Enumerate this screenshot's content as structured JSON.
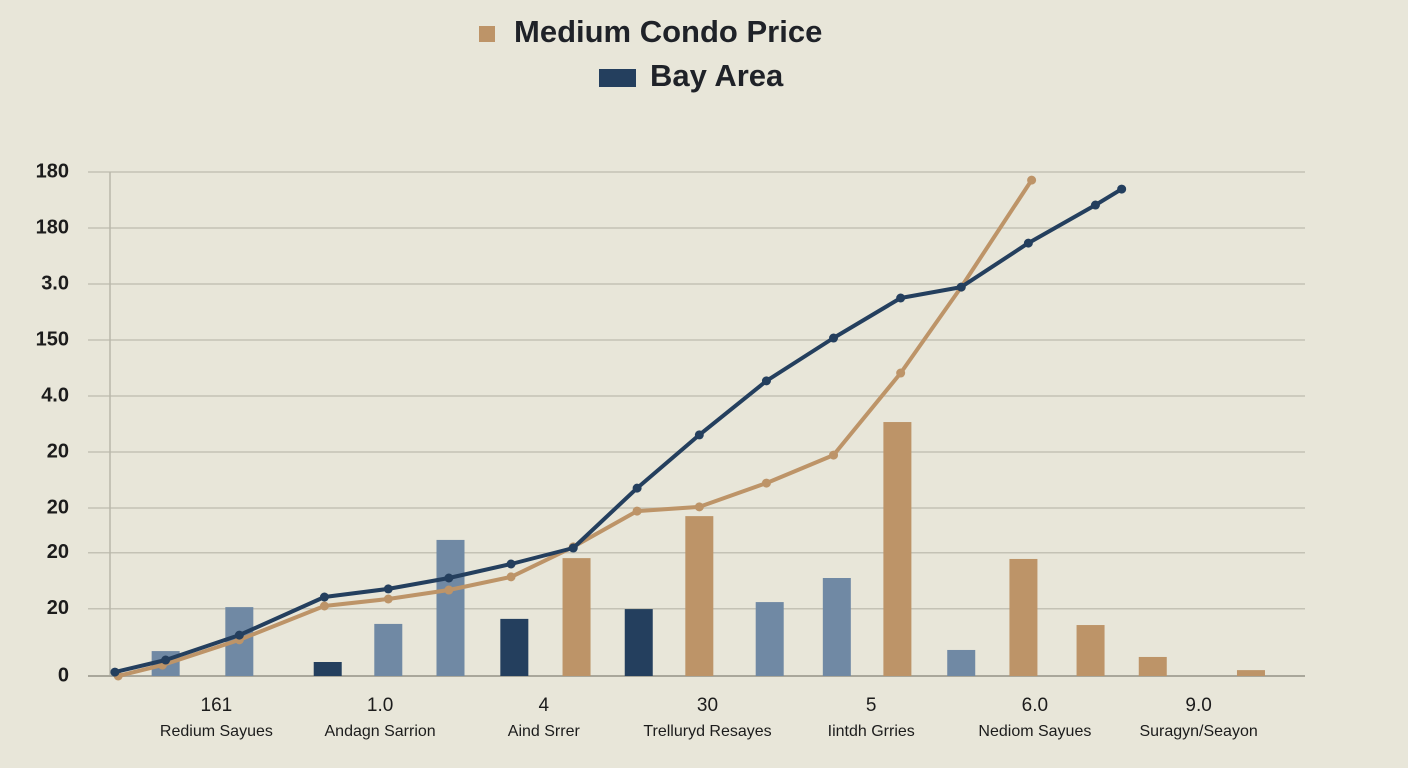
{
  "chart_data": {
    "type": "line",
    "series": [
      {
        "name": "Medium Condo Price",
        "color": "#bd9468",
        "x": [
          -0.6,
          -0.33,
          0.14,
          0.66,
          1.05,
          1.42,
          1.8,
          2.18,
          2.57,
          2.95,
          3.36,
          3.77,
          4.18,
          4.55,
          4.98
        ],
        "values": [
          0,
          3.9,
          12.9,
          25,
          27.5,
          30.7,
          35.4,
          46.1,
          58.9,
          60.4,
          68.9,
          78.9,
          108.2,
          138.9,
          177.1
        ]
      },
      {
        "name": "Bay Area",
        "color": "#243f5e",
        "x": [
          -0.62,
          -0.31,
          0.14,
          0.66,
          1.05,
          1.42,
          1.8,
          2.18,
          2.57,
          2.95,
          3.36,
          3.77,
          4.18,
          4.55,
          4.96,
          5.37,
          5.53
        ],
        "values": [
          1.4,
          5.7,
          14.6,
          28.2,
          31.1,
          35,
          40,
          45.7,
          67.1,
          86.1,
          105.4,
          120.7,
          135,
          138.9,
          154.6,
          168.2,
          173.9
        ]
      }
    ],
    "bars": {
      "type": "bar",
      "x": [
        -0.31,
        0.14,
        0.68,
        1.05,
        1.43,
        1.82,
        2.2,
        2.58,
        2.95,
        3.38,
        3.79,
        4.16,
        4.55,
        4.93,
        5.34,
        5.72,
        6.32
      ],
      "values": [
        8.9,
        24.6,
        5.0,
        18.6,
        48.6,
        20.4,
        42.1,
        23.9,
        57.1,
        26.4,
        35,
        90.7,
        9.3,
        41.8,
        18.2,
        6.8,
        2.1
      ],
      "colors": [
        "#7089a4",
        "#7089a4",
        "#243f5e",
        "#7089a4",
        "#7089a4",
        "#243f5e",
        "#bd9468",
        "#243f5e",
        "#bd9468",
        "#7089a4",
        "#7089a4",
        "#bd9468",
        "#7089a4",
        "#bd9468",
        "#bd9468",
        "#bd9468",
        "#bd9468"
      ]
    },
    "categories": [
      "161",
      "1.0",
      "4",
      "30",
      "5",
      "6.0",
      "9.0"
    ],
    "subcategories": [
      "Redium Sayues",
      "Andagn Sarrion",
      "Aind Srrer",
      "Trelluryd Resayes",
      "Iintdh Grries",
      "Nediom Sayues",
      "Suragyn/Seayon"
    ],
    "xlim": [
      -0.65,
      6.65
    ],
    "ylim": [
      0,
      180
    ],
    "yticks": [
      0,
      {
        "value": 24,
        "label": "20"
      },
      {
        "value": 44,
        "label": "20"
      },
      {
        "value": 60,
        "label": "20"
      },
      {
        "value": 80,
        "label": "20"
      },
      {
        "value": 100,
        "label": "4.0"
      },
      {
        "value": 120,
        "label": "150"
      },
      {
        "value": 140,
        "label": "3.0"
      },
      {
        "value": 160,
        "label": "180"
      },
      180
    ],
    "grid": true
  }
}
